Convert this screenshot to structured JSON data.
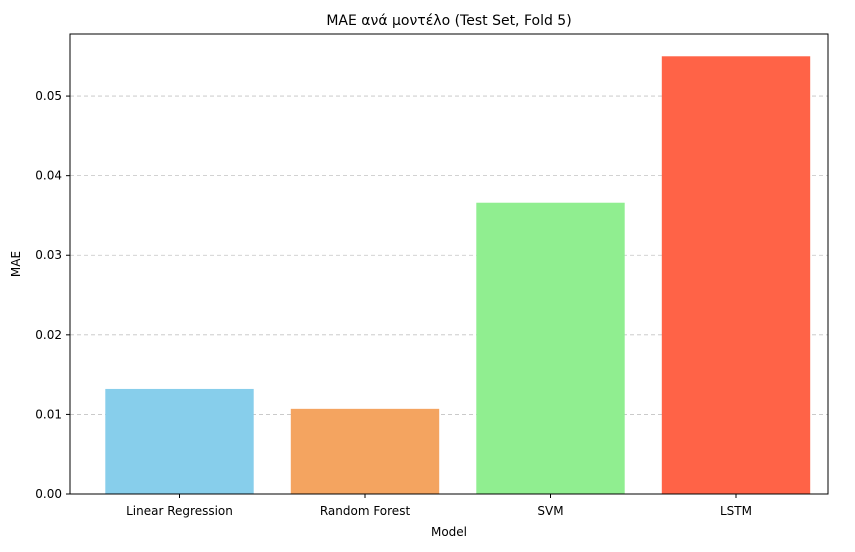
{
  "chart_data": {
    "type": "bar",
    "title": "MAE ανά μοντέλο (Test Set, Fold 5)",
    "xlabel": "Model",
    "ylabel": "MAE",
    "categories": [
      "Linear Regression",
      "Random Forest",
      "SVM",
      "LSTM"
    ],
    "values": [
      0.0132,
      0.0107,
      0.0366,
      0.055
    ],
    "colors": [
      "#87CEEB",
      "#F4A460",
      "#90EE90",
      "#FF6347"
    ],
    "ylim": [
      0,
      0.0578
    ],
    "yticks": [
      0.0,
      0.01,
      0.02,
      0.03,
      0.04,
      0.05
    ],
    "ytick_labels": [
      "0.00",
      "0.01",
      "0.02",
      "0.03",
      "0.04",
      "0.05"
    ],
    "grid": "y-dashed",
    "legend": "none"
  }
}
